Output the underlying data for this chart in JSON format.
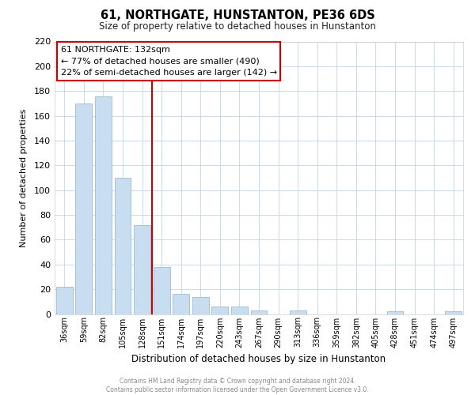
{
  "title": "61, NORTHGATE, HUNSTANTON, PE36 6DS",
  "subtitle": "Size of property relative to detached houses in Hunstanton",
  "xlabel": "Distribution of detached houses by size in Hunstanton",
  "ylabel": "Number of detached properties",
  "bar_labels": [
    "36sqm",
    "59sqm",
    "82sqm",
    "105sqm",
    "128sqm",
    "151sqm",
    "174sqm",
    "197sqm",
    "220sqm",
    "243sqm",
    "267sqm",
    "290sqm",
    "313sqm",
    "336sqm",
    "359sqm",
    "382sqm",
    "405sqm",
    "428sqm",
    "451sqm",
    "474sqm",
    "497sqm"
  ],
  "bar_values": [
    22,
    170,
    176,
    110,
    72,
    38,
    16,
    14,
    6,
    6,
    3,
    0,
    3,
    0,
    0,
    0,
    0,
    2,
    0,
    0,
    2
  ],
  "bar_color": "#c8ddef",
  "bar_edge_color": "#9abdd8",
  "vline_x": 4.5,
  "vline_color": "#cc0000",
  "annotation_title": "61 NORTHGATE: 132sqm",
  "annotation_line1": "← 77% of detached houses are smaller (490)",
  "annotation_line2": "22% of semi-detached houses are larger (142) →",
  "annotation_box_color": "#ffffff",
  "annotation_box_edge": "#cc0000",
  "ylim": [
    0,
    220
  ],
  "yticks": [
    0,
    20,
    40,
    60,
    80,
    100,
    120,
    140,
    160,
    180,
    200,
    220
  ],
  "footer_line1": "Contains HM Land Registry data © Crown copyright and database right 2024.",
  "footer_line2": "Contains public sector information licensed under the Open Government Licence v3.0.",
  "bg_color": "#ffffff",
  "grid_color": "#cddcec"
}
